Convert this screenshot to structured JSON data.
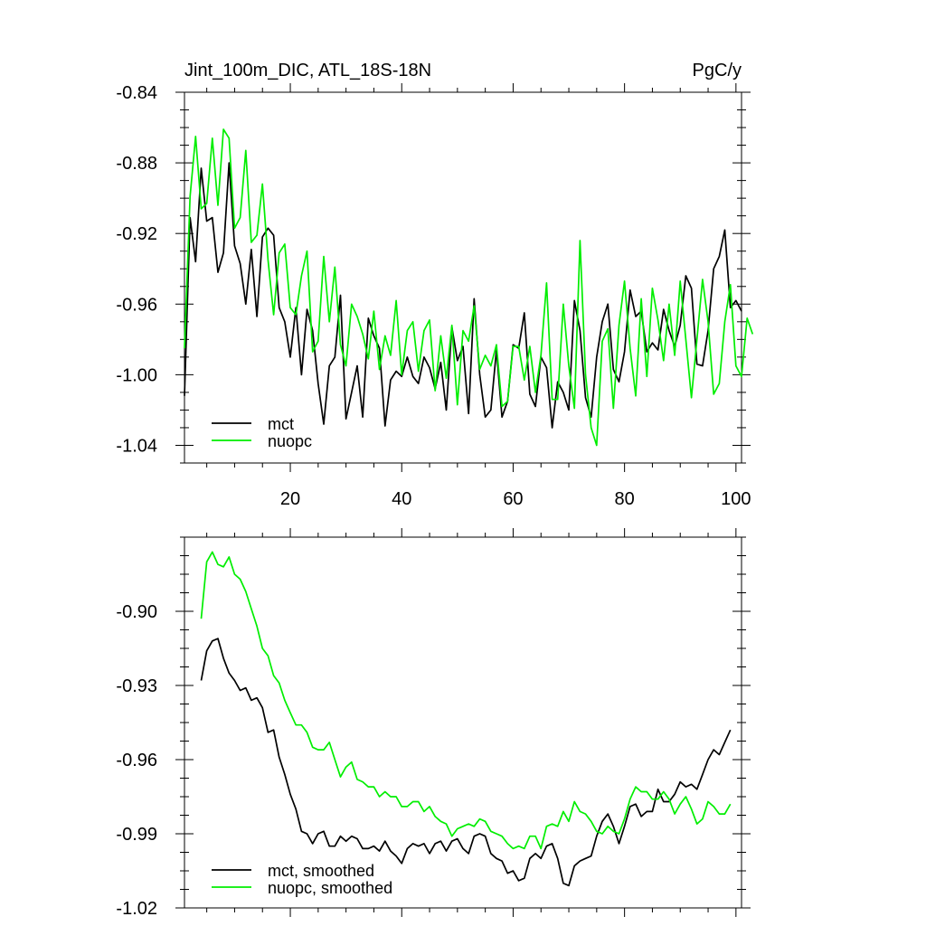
{
  "figure": {
    "title_left": "Jint_100m_DIC, ATL_18S-18N",
    "title_right": "PgC/y"
  },
  "colors": {
    "mct": "#000000",
    "nuopc": "#00ee00",
    "axis": "#000000",
    "background": "#ffffff"
  },
  "chart_data": [
    {
      "type": "line",
      "title": "Jint_100m_DIC, ATL_18S-18N",
      "units": "PgC/y",
      "xlabel": "",
      "ylabel": "",
      "xlim": [
        1,
        101
      ],
      "ylim": [
        -1.05,
        -0.84
      ],
      "x_ticks": [
        20,
        40,
        60,
        80,
        100
      ],
      "y_ticks": [
        -0.84,
        -0.88,
        -0.92,
        -0.96,
        -1.0,
        -1.04
      ],
      "y_tick_labels": [
        "-0.84",
        "-0.88",
        "-0.92",
        "-0.96",
        "-1.00",
        "-1.04"
      ],
      "x_tick_labels": [
        "20",
        "40",
        "60",
        "80",
        "100"
      ],
      "grid": false,
      "legend_position": "bottom-left",
      "x_start": 1,
      "series": [
        {
          "name": "mct",
          "color": "#000000",
          "values": [
            -1.012,
            -0.911,
            -0.936,
            -0.883,
            -0.913,
            -0.911,
            -0.942,
            -0.931,
            -0.88,
            -0.927,
            -0.937,
            -0.96,
            -0.929,
            -0.967,
            -0.922,
            -0.917,
            -0.921,
            -0.962,
            -0.97,
            -0.99,
            -0.962,
            -1.0,
            -0.963,
            -0.975,
            -1.005,
            -1.028,
            -0.995,
            -0.99,
            -0.955,
            -1.025,
            -1.01,
            -0.995,
            -1.024,
            -0.968,
            -0.978,
            -0.985,
            -1.029,
            -1.003,
            -0.998,
            -1.001,
            -0.99,
            -1.001,
            -1.005,
            -0.99,
            -0.996,
            -1.008,
            -0.993,
            -1.02,
            -0.973,
            -0.992,
            -0.984,
            -1.022,
            -0.957,
            -1.0,
            -1.024,
            -1.02,
            -0.986,
            -1.024,
            -1.015,
            -0.983,
            -0.985,
            -0.965,
            -1.011,
            -1.018,
            -0.99,
            -0.996,
            -1.03,
            -1.004,
            -1.01,
            -1.02,
            -0.958,
            -0.975,
            -1.013,
            -1.024,
            -0.99,
            -0.97,
            -0.96,
            -0.997,
            -1.004,
            -0.987,
            -0.952,
            -0.967,
            -0.964,
            -0.987,
            -0.982,
            -0.986,
            -0.963,
            -0.975,
            -0.984,
            -0.972,
            -0.944,
            -0.951,
            -0.994,
            -0.995,
            -0.975,
            -0.94,
            -0.933,
            -0.918,
            -0.962,
            -0.958,
            -0.964
          ]
        },
        {
          "name": "nuopc",
          "color": "#00ee00",
          "values": [
            -0.985,
            -0.899,
            -0.865,
            -0.906,
            -0.903,
            -0.866,
            -0.904,
            -0.861,
            -0.866,
            -0.917,
            -0.911,
            -0.873,
            -0.925,
            -0.921,
            -0.892,
            -0.935,
            -0.966,
            -0.931,
            -0.926,
            -0.962,
            -0.966,
            -0.944,
            -0.93,
            -0.987,
            -0.981,
            -0.933,
            -0.97,
            -0.939,
            -0.983,
            -0.995,
            -0.96,
            -0.967,
            -0.977,
            -0.991,
            -0.964,
            -0.997,
            -0.978,
            -0.989,
            -0.958,
            -1.0,
            -0.975,
            -0.97,
            -0.998,
            -0.975,
            -0.969,
            -1.009,
            -0.978,
            -1.002,
            -0.972,
            -1.017,
            -0.975,
            -0.981,
            -0.961,
            -0.997,
            -0.989,
            -0.995,
            -0.983,
            -1.018,
            -1.015,
            -0.984,
            -0.984,
            -1.003,
            -0.984,
            -1.01,
            -0.989,
            -0.948,
            -1.014,
            -1.014,
            -0.96,
            -0.995,
            -1.019,
            -0.924,
            -1.0,
            -1.03,
            -1.04,
            -0.981,
            -0.974,
            -1.019,
            -0.972,
            -0.947,
            -0.985,
            -1.012,
            -0.957,
            -1.001,
            -0.951,
            -0.969,
            -0.992,
            -0.96,
            -0.989,
            -0.947,
            -0.98,
            -1.013,
            -0.98,
            -0.946,
            -0.97,
            -1.011,
            -1.005,
            -0.97,
            -0.949,
            -0.995,
            -1.001,
            -0.968,
            -0.977
          ]
        }
      ]
    },
    {
      "type": "line",
      "title": "",
      "xlabel": "",
      "ylabel": "",
      "xlim": [
        1,
        101
      ],
      "ylim": [
        -1.02,
        -0.87
      ],
      "y_ticks": [
        -0.9,
        -0.93,
        -0.96,
        -0.99,
        -1.02
      ],
      "y_tick_labels": [
        "-0.90",
        "-0.93",
        "-0.96",
        "-0.99",
        "-1.02"
      ],
      "grid": false,
      "legend_position": "bottom-left",
      "x_start": 4,
      "series": [
        {
          "name": "mct, smoothed",
          "color": "#000000",
          "values": [
            -0.928,
            -0.916,
            -0.912,
            -0.911,
            -0.919,
            -0.925,
            -0.928,
            -0.932,
            -0.931,
            -0.936,
            -0.935,
            -0.939,
            -0.949,
            -0.948,
            -0.959,
            -0.966,
            -0.974,
            -0.98,
            -0.989,
            -0.99,
            -0.994,
            -0.99,
            -0.989,
            -0.995,
            -0.995,
            -0.991,
            -0.993,
            -0.991,
            -0.992,
            -0.996,
            -0.996,
            -0.995,
            -0.997,
            -0.993,
            -0.997,
            -0.999,
            -1.002,
            -0.996,
            -0.994,
            -0.995,
            -0.994,
            -0.998,
            -0.994,
            -0.993,
            -0.997,
            -0.993,
            -0.992,
            -0.996,
            -0.998,
            -0.991,
            -0.99,
            -0.991,
            -0.998,
            -1.0,
            -1.001,
            -1.006,
            -1.005,
            -1.009,
            -1.008,
            -1.0,
            -0.998,
            -1.0,
            -0.995,
            -0.994,
            -1.0,
            -1.01,
            -1.011,
            -1.003,
            -1.001,
            -1.0,
            -0.999,
            -0.991,
            -0.985,
            -0.982,
            -0.987,
            -0.994,
            -0.987,
            -0.979,
            -0.978,
            -0.983,
            -0.981,
            -0.981,
            -0.972,
            -0.977,
            -0.977,
            -0.974,
            -0.969,
            -0.971,
            -0.97,
            -0.972,
            -0.966,
            -0.96,
            -0.956,
            -0.958,
            -0.953,
            -0.948
          ]
        },
        {
          "name": "nuopc, smoothed",
          "color": "#00ee00",
          "values": [
            -0.903,
            -0.88,
            -0.876,
            -0.881,
            -0.882,
            -0.878,
            -0.885,
            -0.887,
            -0.892,
            -0.899,
            -0.906,
            -0.915,
            -0.918,
            -0.926,
            -0.929,
            -0.936,
            -0.941,
            -0.946,
            -0.946,
            -0.949,
            -0.955,
            -0.956,
            -0.956,
            -0.953,
            -0.96,
            -0.967,
            -0.963,
            -0.961,
            -0.968,
            -0.969,
            -0.971,
            -0.971,
            -0.975,
            -0.973,
            -0.975,
            -0.975,
            -0.979,
            -0.979,
            -0.977,
            -0.977,
            -0.981,
            -0.979,
            -0.983,
            -0.985,
            -0.986,
            -0.991,
            -0.988,
            -0.987,
            -0.986,
            -0.987,
            -0.984,
            -0.985,
            -0.989,
            -0.99,
            -0.991,
            -0.994,
            -0.996,
            -0.995,
            -0.996,
            -0.991,
            -0.991,
            -0.996,
            -0.987,
            -0.986,
            -0.987,
            -0.981,
            -0.985,
            -0.977,
            -0.981,
            -0.982,
            -0.985,
            -0.989,
            -0.99,
            -0.987,
            -0.989,
            -0.99,
            -0.984,
            -0.976,
            -0.971,
            -0.973,
            -0.973,
            -0.976,
            -0.976,
            -0.973,
            -0.976,
            -0.982,
            -0.978,
            -0.975,
            -0.98,
            -0.986,
            -0.984,
            -0.977,
            -0.979,
            -0.982,
            -0.982,
            -0.978
          ]
        }
      ]
    }
  ]
}
